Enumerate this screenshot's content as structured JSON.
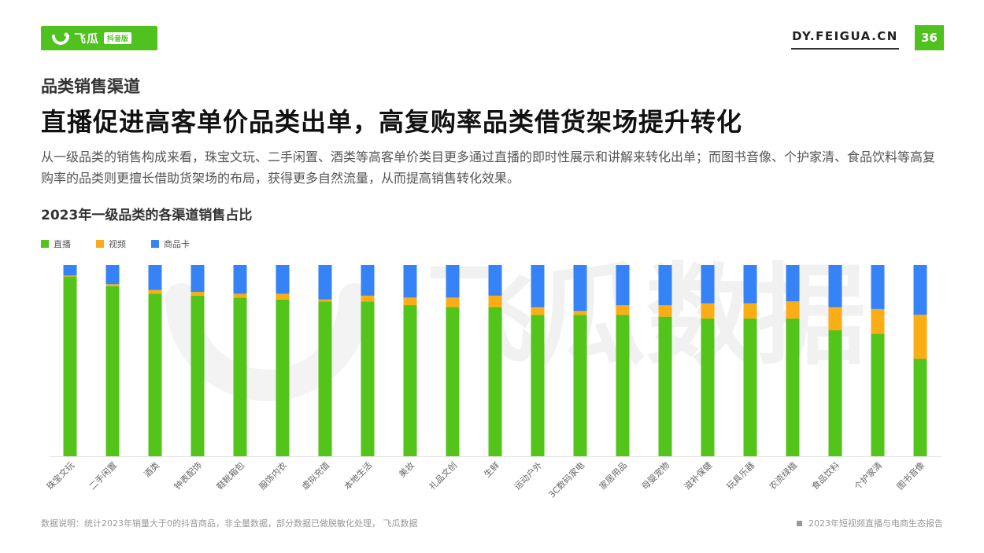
{
  "brand": {
    "logo_name": "飞瓜",
    "logo_badge": "抖音版",
    "site": "DY.FEIGUA.CN",
    "page_number": "36",
    "accent": "#4fc21f"
  },
  "section_title": "品类销售渠道",
  "headline": "直播促进高客单价品类出单，高复购率品类借货架场提升转化",
  "description": "从一级品类的销售构成来看，珠宝文玩、二手闲置、酒类等高客单价类目更多通过直播的即时性展示和讲解来转化出单；而图书音像、个护家清、食品饮料等高复购率的品类则更擅长借助货架场的布局，获得更多自然流量，从而提高销售转化效果。",
  "chart_data": {
    "type": "bar",
    "stacked": true,
    "percent": true,
    "title": "2023年一级品类的各渠道销售占比",
    "xlabel": "",
    "ylabel": "",
    "ylim": [
      0,
      100
    ],
    "grid": false,
    "legend_position": "top-left",
    "categories": [
      "珠宝文玩",
      "二手闲置",
      "酒类",
      "钟表配饰",
      "鞋靴箱包",
      "服饰内衣",
      "虚拟充值",
      "本地生活",
      "美妆",
      "礼品文创",
      "生鲜",
      "运动户外",
      "3C数码家电",
      "家居用品",
      "母婴宠物",
      "滋补保健",
      "玩具乐器",
      "农资绿植",
      "食品饮料",
      "个护家清",
      "图书音像"
    ],
    "series": [
      {
        "name": "直播",
        "color": "#52c41a",
        "values": [
          94,
          89,
          85,
          84,
          83,
          82,
          81,
          81,
          79,
          78,
          78,
          74,
          74,
          74,
          73,
          72,
          72,
          72,
          66,
          64,
          51
        ]
      },
      {
        "name": "视频",
        "color": "#faad14",
        "values": [
          0.5,
          1,
          2,
          2,
          2,
          3,
          1,
          3,
          4,
          5,
          6,
          4,
          2,
          5,
          6,
          8,
          8,
          9,
          12,
          13,
          23
        ]
      },
      {
        "name": "商品卡",
        "color": "#3583f6",
        "values": [
          5.5,
          10,
          13,
          14,
          15,
          15,
          18,
          16,
          17,
          17,
          16,
          22,
          24,
          21,
          21,
          20,
          20,
          19,
          22,
          23,
          26
        ]
      }
    ]
  },
  "footnote": "数据说明：统计2023年销量大于0的抖音商品，非全量数据，部分数据已做脱敏化处理， 飞瓜数据",
  "report_name": "2023年短视频直播与电商生态报告",
  "watermark_text": "飞瓜数据"
}
